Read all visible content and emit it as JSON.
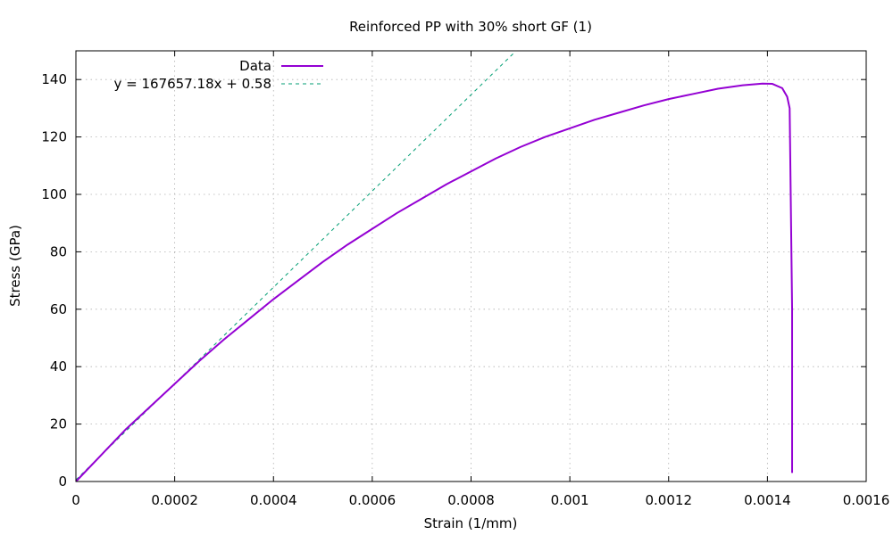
{
  "chart_data": {
    "type": "line",
    "title": "Reinforced PP with 30% short GF (1)",
    "xlabel": "Strain (1/mm)",
    "ylabel": "Stress (GPa)",
    "xlim": [
      0,
      0.0016
    ],
    "ylim": [
      0,
      150
    ],
    "x_ticks": [
      0,
      0.0002,
      0.0004,
      0.0006,
      0.0008,
      0.001,
      0.0012,
      0.0014,
      0.0016
    ],
    "x_tick_labels": [
      "0",
      "0.0002",
      "0.0004",
      "0.0006",
      "0.0008",
      "0.001",
      "0.0012",
      "0.0014",
      "0.0016"
    ],
    "y_ticks": [
      0,
      20,
      40,
      60,
      80,
      100,
      120,
      140
    ],
    "y_tick_labels": [
      "0",
      "20",
      "40",
      "60",
      "80",
      "100",
      "120",
      "140"
    ],
    "grid": true,
    "legend_position": "top-left",
    "series": [
      {
        "name": "Data",
        "style": "solid",
        "color": "#9400d3",
        "x": [
          0,
          5e-05,
          0.0001,
          0.00015,
          0.0002,
          0.00025,
          0.0003,
          0.00035,
          0.0004,
          0.00045,
          0.0005,
          0.00055,
          0.0006,
          0.00065,
          0.0007,
          0.00075,
          0.0008,
          0.00085,
          0.0009,
          0.00095,
          0.001,
          0.00105,
          0.0011,
          0.00115,
          0.0012,
          0.00125,
          0.0013,
          0.00135,
          0.00139,
          0.00141,
          0.00143,
          0.00144,
          0.001445,
          0.00145,
          0.00145
        ],
        "y": [
          0,
          9,
          18,
          26,
          34,
          42,
          49.5,
          56.5,
          63.5,
          70,
          76.5,
          82.5,
          88,
          93.5,
          98.5,
          103.5,
          108,
          112.5,
          116.5,
          120,
          123,
          126,
          128.5,
          131,
          133.2,
          135,
          136.8,
          138,
          138.6,
          138.5,
          137,
          134,
          130,
          60,
          3
        ]
      },
      {
        "name": "y = 167657.18x + 0.58",
        "style": "dashed",
        "color": "#009e73",
        "slope": 167657.18,
        "intercept": 0.58,
        "x": [
          0,
          0.000885
        ],
        "y": [
          0.58,
          148.96
        ]
      }
    ]
  }
}
